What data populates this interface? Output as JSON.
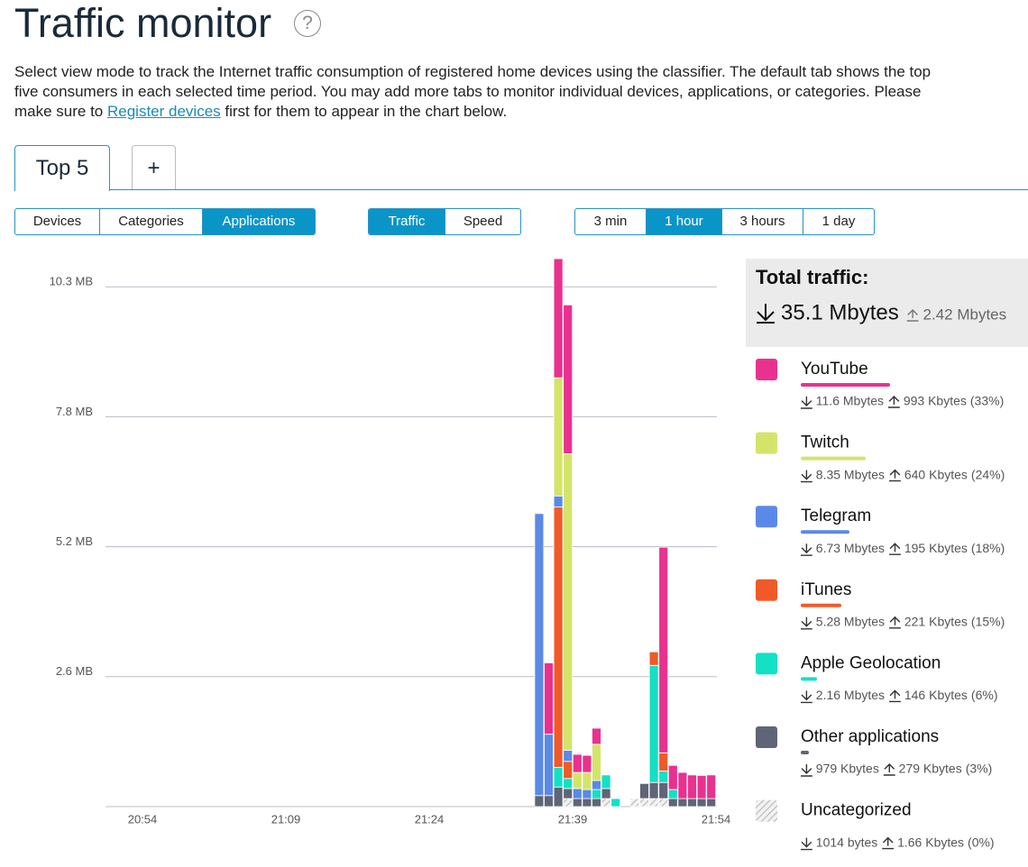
{
  "header": {
    "title": "Traffic monitor",
    "help_icon": "?"
  },
  "description": {
    "text_before": "Select view mode to track the Internet traffic consumption of registered home devices using the classifier. The default tab shows the top five consumers in each selected time period. You may add more tabs to monitor individual devices, applications, or categories. Please make sure to ",
    "link": "Register devices",
    "text_after": " first for them to appear in the chart below."
  },
  "tabs": [
    "Top 5",
    "+"
  ],
  "view_modes": {
    "options": [
      "Devices",
      "Categories",
      "Applications"
    ],
    "active": 2
  },
  "metrics": {
    "options": [
      "Traffic",
      "Speed"
    ],
    "active": 0
  },
  "periods": {
    "options": [
      "3 min",
      "1 hour",
      "3 hours",
      "1 day"
    ],
    "active": 1
  },
  "total": {
    "title": "Total traffic:",
    "down": "35.1 Mbytes",
    "up": "2.42 Mbytes"
  },
  "chart_data": {
    "type": "bar",
    "stacked": true,
    "grid": true,
    "ylim": [
      0,
      10.9
    ],
    "yticks": [
      {
        "value": 2.585,
        "label": "2.6 MB"
      },
      {
        "value": 5.17,
        "label": "5.2 MB"
      },
      {
        "value": 7.755,
        "label": "7.8 MB"
      },
      {
        "value": 10.34,
        "label": "10.3 MB"
      }
    ],
    "categories": [
      "20:54",
      null,
      null,
      null,
      null,
      null,
      null,
      null,
      null,
      null,
      null,
      null,
      null,
      null,
      null,
      "21:09",
      null,
      null,
      null,
      null,
      null,
      null,
      null,
      null,
      null,
      null,
      null,
      null,
      null,
      null,
      "21:24",
      null,
      null,
      null,
      null,
      null,
      null,
      null,
      null,
      null,
      null,
      null,
      null,
      null,
      null,
      "21:39",
      null,
      null,
      null,
      null,
      null,
      null,
      null,
      null,
      null,
      null,
      null,
      null,
      null,
      null,
      "21:54"
    ],
    "series": [
      {
        "name": "YouTube",
        "color": "#e9318f",
        "down": "11.6 Mbytes",
        "up": "993 Kbytes",
        "share": 33,
        "share_label": "(33%)",
        "values": [
          null,
          null,
          null,
          null,
          null,
          null,
          null,
          null,
          null,
          null,
          null,
          null,
          null,
          null,
          null,
          null,
          null,
          null,
          null,
          null,
          null,
          null,
          null,
          null,
          null,
          null,
          null,
          null,
          null,
          null,
          null,
          null,
          null,
          null,
          null,
          null,
          null,
          null,
          null,
          null,
          null,
          null,
          1.42,
          2.37,
          2.96,
          0.36,
          0.34,
          0.32,
          null,
          null,
          null,
          null,
          null,
          null,
          4.09,
          0.48,
          0.52,
          0.47,
          0.46,
          0.47,
          null
        ]
      },
      {
        "name": "Twitch",
        "color": "#d4e46a",
        "down": "8.35 Mbytes",
        "up": "640 Kbytes",
        "share": 24,
        "share_label": "(24%)",
        "values": [
          null,
          null,
          null,
          null,
          null,
          null,
          null,
          null,
          null,
          null,
          null,
          null,
          null,
          null,
          null,
          null,
          null,
          null,
          null,
          null,
          null,
          null,
          null,
          null,
          null,
          null,
          null,
          null,
          null,
          null,
          null,
          null,
          null,
          null,
          null,
          null,
          null,
          null,
          null,
          null,
          null,
          null,
          null,
          2.35,
          5.9,
          0.32,
          0.34,
          0.72,
          null,
          null,
          null,
          null,
          null,
          null,
          null,
          null,
          null,
          null,
          null,
          null,
          null
        ]
      },
      {
        "name": "Telegram",
        "color": "#5a8ae6",
        "down": "6.73 Mbytes",
        "up": "195 Kbytes",
        "share": 18,
        "share_label": "(18%)",
        "values": [
          null,
          null,
          null,
          null,
          null,
          null,
          null,
          null,
          null,
          null,
          null,
          null,
          null,
          null,
          null,
          null,
          null,
          null,
          null,
          null,
          null,
          null,
          null,
          null,
          null,
          null,
          null,
          null,
          null,
          null,
          null,
          null,
          null,
          null,
          null,
          null,
          null,
          null,
          null,
          null,
          null,
          5.61,
          1.22,
          0.22,
          0.22,
          0.2,
          0.18,
          0.18,
          null,
          null,
          null,
          null,
          null,
          null,
          null,
          null,
          null,
          null,
          null,
          null,
          null
        ]
      },
      {
        "name": "iTunes",
        "color": "#f05a28",
        "down": "5.28 Mbytes",
        "up": "221 Kbytes",
        "share": 15,
        "share_label": "(15%)",
        "values": [
          null,
          null,
          null,
          null,
          null,
          null,
          null,
          null,
          null,
          null,
          null,
          null,
          null,
          null,
          null,
          null,
          null,
          null,
          null,
          null,
          null,
          null,
          null,
          null,
          null,
          null,
          null,
          null,
          null,
          null,
          null,
          null,
          null,
          null,
          null,
          null,
          null,
          null,
          null,
          null,
          null,
          null,
          null,
          5.18,
          0.34,
          null,
          null,
          null,
          null,
          null,
          null,
          null,
          null,
          0.27,
          0.36,
          null,
          null,
          null,
          null,
          null,
          null
        ]
      },
      {
        "name": "Apple Geolocation",
        "color": "#14e0c4",
        "down": "2.16 Mbytes",
        "up": "146 Kbytes",
        "share": 6,
        "share_label": "(6%)",
        "values": [
          null,
          null,
          null,
          null,
          null,
          null,
          null,
          null,
          null,
          null,
          null,
          null,
          null,
          null,
          null,
          null,
          null,
          null,
          null,
          null,
          null,
          null,
          null,
          null,
          null,
          null,
          null,
          null,
          null,
          null,
          null,
          null,
          null,
          null,
          null,
          null,
          null,
          null,
          null,
          null,
          null,
          null,
          null,
          0.39,
          0.2,
          null,
          null,
          0.18,
          0.27,
          0.16,
          null,
          null,
          null,
          2.33,
          0.23,
          0.18,
          null,
          null,
          null,
          null,
          null
        ]
      },
      {
        "name": "Other applications",
        "color": "#5f6577",
        "down": "979 Kbytes",
        "up": "279 Kbytes",
        "share": 3,
        "share_label": "(3%)",
        "values": [
          null,
          null,
          null,
          null,
          null,
          null,
          null,
          null,
          null,
          null,
          null,
          null,
          null,
          null,
          null,
          null,
          null,
          null,
          null,
          null,
          null,
          null,
          null,
          null,
          null,
          null,
          null,
          null,
          null,
          null,
          null,
          null,
          null,
          null,
          null,
          null,
          null,
          null,
          null,
          null,
          null,
          0.22,
          0.22,
          0.39,
          0.2,
          0.16,
          0.16,
          0.16,
          0.2,
          null,
          null,
          null,
          0.3,
          0.32,
          0.32,
          0.16,
          0.16,
          0.16,
          0.16,
          0.16,
          null
        ]
      },
      {
        "name": "Uncategorized",
        "color": "#c8c8c8",
        "pattern": "hatch",
        "down": "1014 bytes",
        "up": "1.66 Kbytes",
        "share": 0,
        "share_label": "(0%)",
        "values": [
          null,
          null,
          null,
          null,
          null,
          null,
          null,
          null,
          null,
          null,
          null,
          null,
          null,
          null,
          null,
          null,
          null,
          null,
          null,
          null,
          null,
          null,
          null,
          null,
          null,
          null,
          null,
          null,
          null,
          null,
          null,
          null,
          null,
          null,
          null,
          null,
          null,
          null,
          null,
          null,
          null,
          null,
          null,
          null,
          0.16,
          null,
          null,
          null,
          0.16,
          null,
          null,
          0.16,
          0.16,
          0.16,
          0.16,
          null,
          null,
          null,
          null,
          null,
          null
        ]
      }
    ]
  }
}
